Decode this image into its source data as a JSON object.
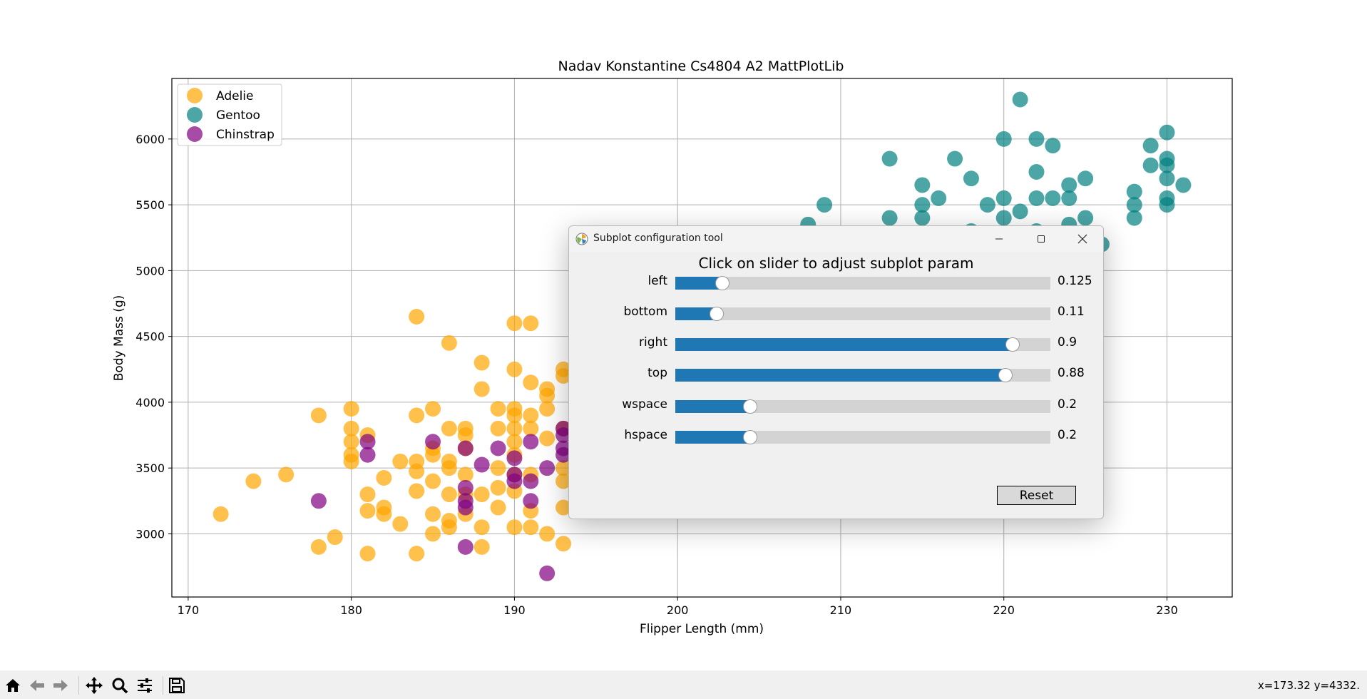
{
  "window": {
    "coords_text": "x=173.32 y=4332."
  },
  "toolbar": {
    "buttons": [
      "home-icon",
      "back-arrow-icon",
      "forward-arrow-icon",
      "pan-icon",
      "zoom-icon",
      "configure-subplots-icon",
      "save-icon"
    ]
  },
  "chart_data": {
    "type": "scatter",
    "title": "Nadav Konstantine Cs4804 A2 MattPlotLib",
    "xlabel": "Flipper Length (mm)",
    "ylabel": "Body Mass (g)",
    "xlim": [
      169,
      234
    ],
    "ylim": [
      2520,
      6460
    ],
    "xticks": [
      170,
      180,
      190,
      200,
      210,
      220,
      230
    ],
    "yticks": [
      3000,
      3500,
      4000,
      4500,
      5000,
      5500,
      6000
    ],
    "grid": true,
    "legend_position": "top-left",
    "series": [
      {
        "name": "Adelie",
        "color": "#ffa500",
        "points": [
          [
            172,
            3150
          ],
          [
            174,
            3400
          ],
          [
            176,
            3450
          ],
          [
            178,
            3900
          ],
          [
            178,
            2900
          ],
          [
            179,
            2975
          ],
          [
            180,
            3950
          ],
          [
            180,
            3800
          ],
          [
            180,
            3700
          ],
          [
            180,
            3600
          ],
          [
            180,
            3550
          ],
          [
            181,
            3750
          ],
          [
            181,
            3300
          ],
          [
            181,
            3175
          ],
          [
            181,
            2850
          ],
          [
            182,
            3425
          ],
          [
            182,
            3200
          ],
          [
            182,
            3150
          ],
          [
            183,
            3550
          ],
          [
            183,
            3075
          ],
          [
            184,
            4650
          ],
          [
            184,
            3900
          ],
          [
            184,
            3550
          ],
          [
            184,
            3475
          ],
          [
            184,
            3325
          ],
          [
            184,
            2850
          ],
          [
            185,
            3950
          ],
          [
            185,
            3650
          ],
          [
            185,
            3600
          ],
          [
            185,
            3400
          ],
          [
            185,
            3150
          ],
          [
            185,
            3000
          ],
          [
            186,
            4450
          ],
          [
            186,
            3800
          ],
          [
            186,
            3550
          ],
          [
            186,
            3500
          ],
          [
            186,
            3300
          ],
          [
            186,
            3100
          ],
          [
            186,
            3050
          ],
          [
            187,
            3800
          ],
          [
            187,
            3750
          ],
          [
            187,
            3650
          ],
          [
            187,
            3450
          ],
          [
            187,
            3300
          ],
          [
            187,
            3150
          ],
          [
            188,
            4300
          ],
          [
            188,
            4100
          ],
          [
            188,
            3300
          ],
          [
            188,
            3050
          ],
          [
            188,
            2900
          ],
          [
            189,
            3950
          ],
          [
            189,
            3800
          ],
          [
            189,
            3500
          ],
          [
            189,
            3350
          ],
          [
            189,
            3200
          ],
          [
            190,
            4600
          ],
          [
            190,
            4250
          ],
          [
            190,
            3950
          ],
          [
            190,
            3900
          ],
          [
            190,
            3800
          ],
          [
            190,
            3700
          ],
          [
            190,
            3600
          ],
          [
            190,
            3450
          ],
          [
            190,
            3325
          ],
          [
            190,
            3050
          ],
          [
            191,
            4600
          ],
          [
            191,
            4150
          ],
          [
            191,
            3900
          ],
          [
            191,
            3800
          ],
          [
            191,
            3450
          ],
          [
            191,
            3175
          ],
          [
            191,
            3050
          ],
          [
            192,
            4100
          ],
          [
            192,
            4050
          ],
          [
            192,
            3950
          ],
          [
            192,
            3725
          ],
          [
            192,
            3000
          ],
          [
            193,
            4250
          ],
          [
            193,
            4200
          ],
          [
            193,
            3800
          ],
          [
            193,
            3500
          ],
          [
            193,
            3400
          ],
          [
            193,
            3200
          ],
          [
            193,
            2925
          ]
        ]
      },
      {
        "name": "Gentoo",
        "color": "#008080",
        "points": [
          [
            208,
            5350
          ],
          [
            209,
            5500
          ],
          [
            213,
            5850
          ],
          [
            213,
            5400
          ],
          [
            215,
            5650
          ],
          [
            215,
            5500
          ],
          [
            215,
            5400
          ],
          [
            216,
            5550
          ],
          [
            217,
            5850
          ],
          [
            218,
            5700
          ],
          [
            218,
            5300
          ],
          [
            219,
            5500
          ],
          [
            220,
            6000
          ],
          [
            220,
            5550
          ],
          [
            220,
            5400
          ],
          [
            221,
            6300
          ],
          [
            221,
            5450
          ],
          [
            222,
            6000
          ],
          [
            222,
            5750
          ],
          [
            222,
            5550
          ],
          [
            222,
            5300
          ],
          [
            223,
            5950
          ],
          [
            223,
            5550
          ],
          [
            224,
            5650
          ],
          [
            224,
            5550
          ],
          [
            224,
            5350
          ],
          [
            225,
            5700
          ],
          [
            225,
            5400
          ],
          [
            226,
            5200
          ],
          [
            228,
            5600
          ],
          [
            228,
            5500
          ],
          [
            228,
            5400
          ],
          [
            229,
            5950
          ],
          [
            229,
            5800
          ],
          [
            230,
            6050
          ],
          [
            230,
            5850
          ],
          [
            230,
            5800
          ],
          [
            230,
            5700
          ],
          [
            230,
            5550
          ],
          [
            230,
            5500
          ],
          [
            231,
            5650
          ]
        ]
      },
      {
        "name": "Chinstrap",
        "color": "#800080",
        "points": [
          [
            178,
            3250
          ],
          [
            181,
            3700
          ],
          [
            181,
            3600
          ],
          [
            185,
            3700
          ],
          [
            187,
            3650
          ],
          [
            187,
            3350
          ],
          [
            187,
            3250
          ],
          [
            187,
            3200
          ],
          [
            187,
            2900
          ],
          [
            188,
            3525
          ],
          [
            189,
            3650
          ],
          [
            190,
            3575
          ],
          [
            190,
            3450
          ],
          [
            190,
            3400
          ],
          [
            191,
            3700
          ],
          [
            191,
            3400
          ],
          [
            191,
            3250
          ],
          [
            192,
            3500
          ],
          [
            192,
            2700
          ],
          [
            193,
            3800
          ],
          [
            193,
            3750
          ],
          [
            193,
            3650
          ],
          [
            193,
            3600
          ]
        ]
      }
    ]
  },
  "dialog": {
    "title": "Subplot configuration tool",
    "heading": "Click on slider to adjust subplot param",
    "reset_label": "Reset",
    "sliders": [
      {
        "label": "left",
        "value_text": "0.125",
        "fraction": 0.125
      },
      {
        "label": "bottom",
        "value_text": "0.11",
        "fraction": 0.11
      },
      {
        "label": "right",
        "value_text": "0.9",
        "fraction": 0.9
      },
      {
        "label": "top",
        "value_text": "0.88",
        "fraction": 0.88
      },
      {
        "label": "wspace",
        "value_text": "0.2",
        "fraction": 0.2
      },
      {
        "label": "hspace",
        "value_text": "0.2",
        "fraction": 0.2
      }
    ]
  }
}
